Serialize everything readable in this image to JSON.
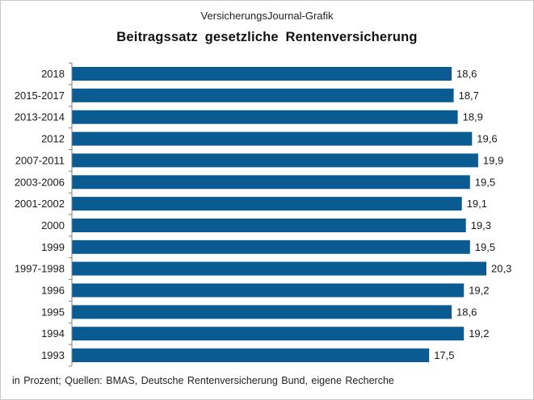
{
  "header": {
    "source": "VersicherungsJournal-Grafik",
    "title": "Beitragssatz gesetzliche Rentenversicherung"
  },
  "footnote": "in Prozent; Quellen: BMAS, Deutsche Rentenversicherung Bund, eigene Recherche",
  "colors": {
    "bar": "#0a5b92",
    "axis": "#7f7f7f",
    "text": "#1a1a1a"
  },
  "chart_data": {
    "type": "bar",
    "orientation": "horizontal",
    "title": "Beitragssatz gesetzliche Rentenversicherung",
    "xlabel": "",
    "ylabel": "",
    "unit": "Prozent",
    "xlim": [
      0,
      20.3
    ],
    "grid": false,
    "legend": "none",
    "categories": [
      "2018",
      "2015-2017",
      "2013-2014",
      "2012",
      "2007-2011",
      "2003-2006",
      "2001-2002",
      "2000",
      "1999",
      "1997-1998",
      "1996",
      "1995",
      "1994",
      "1993"
    ],
    "values": [
      18.6,
      18.7,
      18.9,
      19.6,
      19.9,
      19.5,
      19.1,
      19.3,
      19.5,
      20.3,
      19.2,
      18.6,
      19.2,
      17.5
    ],
    "value_labels": [
      "18,6",
      "18,7",
      "18,9",
      "19,6",
      "19,9",
      "19,5",
      "19,1",
      "19,3",
      "19,5",
      "20,3",
      "19,2",
      "18,6",
      "19,2",
      "17,5"
    ]
  }
}
